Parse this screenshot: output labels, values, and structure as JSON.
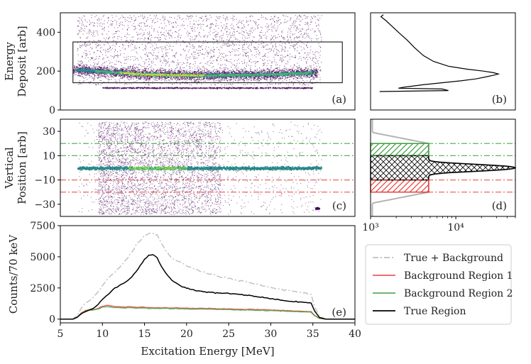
{
  "colors": {
    "true_background": "#b3b3b3",
    "background_region_1": "#e8413c",
    "background_region_2": "#3e9e3e",
    "true_region": "#000000",
    "density_low": "#440154",
    "density_mid": "#21918c",
    "density_high": "#fde725"
  },
  "chart_data": [
    {
      "id": "a",
      "type": "heatmap",
      "panel_label": "(a)",
      "ylabel": [
        "Energy",
        "Deposit [arb]"
      ],
      "xlim": [
        5,
        40
      ],
      "ylim": [
        0,
        500
      ],
      "yticks": [
        "0",
        "200",
        "400"
      ],
      "ytick_values": [
        0,
        200,
        400
      ],
      "band": {
        "x": [
          6.5,
          35.5
        ],
        "center": [
          210,
          185,
          180,
          185,
          195
        ],
        "center_x": [
          6.5,
          15,
          22,
          30,
          35.5
        ]
      },
      "lower_band": {
        "x": [
          10,
          35
        ],
        "y": 115
      },
      "gate_box": {
        "x": [
          6.5,
          38.5
        ],
        "y": [
          140,
          350
        ]
      }
    },
    {
      "id": "b",
      "type": "line",
      "panel_label": "(b)",
      "description_axis": "projection of energy deposit",
      "ylim": [
        0,
        500
      ],
      "points_y": [
        95,
        100,
        108,
        112,
        118,
        122,
        130,
        140,
        150,
        160,
        170,
        180,
        185,
        192,
        200,
        210,
        225,
        250,
        280,
        320,
        360,
        400,
        430,
        460,
        480,
        490
      ],
      "points_x": [
        0.05,
        0.6,
        0.55,
        0.2,
        0.25,
        0.3,
        0.4,
        0.55,
        0.7,
        0.82,
        0.9,
        0.97,
        1.0,
        0.96,
        0.88,
        0.75,
        0.6,
        0.48,
        0.4,
        0.33,
        0.27,
        0.2,
        0.15,
        0.1,
        0.06,
        0.08
      ]
    },
    {
      "id": "c",
      "type": "heatmap",
      "panel_label": "(c)",
      "ylabel": [
        "Vertical",
        "Position [arb]"
      ],
      "xlim": [
        5,
        40
      ],
      "ylim": [
        -40,
        40
      ],
      "yticks": [
        "30",
        "10",
        "−10",
        "−30"
      ],
      "ytick_values": [
        30,
        10,
        -10,
        -30
      ],
      "green_lines": [
        20,
        10
      ],
      "red_lines": [
        -10,
        -20
      ],
      "band": {
        "x": [
          7,
          36
        ],
        "y": 0
      },
      "spot": {
        "x": 35.5,
        "y": -33
      }
    },
    {
      "id": "d",
      "type": "line",
      "panel_label": "(d)",
      "xscale": "log",
      "xlim": [
        1000,
        50000
      ],
      "ylim": [
        -40,
        40
      ],
      "xticks": [
        "10³",
        "10⁴"
      ],
      "xtick_values": [
        1000,
        10000
      ],
      "green_lines": [
        20,
        10
      ],
      "red_lines": [
        -10,
        -20
      ],
      "peak_value": 45000,
      "plateau_value": 4800
    },
    {
      "id": "e",
      "type": "line",
      "panel_label": "(e)",
      "xlabel": "Excitation Energy [MeV]",
      "ylabel": "Counts/70 keV",
      "xlim": [
        5,
        40
      ],
      "ylim": [
        -300,
        7500
      ],
      "xticks": [
        "5",
        "10",
        "15",
        "20",
        "25",
        "30",
        "35",
        "40"
      ],
      "xtick_values": [
        5,
        10,
        15,
        20,
        25,
        30,
        35,
        40
      ],
      "yticks": [
        "0",
        "2500",
        "5000",
        "7500"
      ],
      "ytick_values": [
        0,
        2500,
        5000,
        7500
      ],
      "x": [
        5,
        6.5,
        7,
        7.5,
        8,
        8.5,
        9,
        9.5,
        10,
        10.5,
        11,
        11.5,
        12,
        12.5,
        13,
        13.5,
        14,
        14.5,
        15,
        15.5,
        16,
        16.5,
        17,
        17.5,
        18,
        18.5,
        19,
        19.5,
        20,
        21,
        22,
        23,
        24,
        25,
        26,
        27,
        28,
        29,
        30,
        31,
        32,
        33,
        34,
        34.8,
        35.2,
        35.8,
        36.5,
        40
      ],
      "series": [
        {
          "name": "True + Background",
          "key": "true_background",
          "dash": "8,3,2,3",
          "values": [
            0,
            0,
            300,
            900,
            1300,
            1500,
            1800,
            2200,
            2700,
            3100,
            3500,
            3800,
            4100,
            4500,
            4900,
            5400,
            5900,
            6300,
            6700,
            6900,
            6950,
            6700,
            6100,
            5500,
            5100,
            4800,
            4600,
            4500,
            4300,
            4000,
            3800,
            3600,
            3400,
            3300,
            3100,
            3000,
            2850,
            2700,
            2550,
            2400,
            2300,
            2200,
            2100,
            2000,
            1000,
            200,
            0,
            0
          ]
        },
        {
          "name": "Background Region 1",
          "key": "background_region_1",
          "dash": "",
          "values": [
            0,
            0,
            150,
            500,
            700,
            750,
            780,
            850,
            1050,
            1100,
            1050,
            1000,
            1000,
            980,
            1000,
            970,
            950,
            960,
            950,
            930,
            920,
            910,
            900,
            920,
            900,
            880,
            900,
            880,
            870,
            860,
            870,
            850,
            830,
            820,
            800,
            790,
            780,
            760,
            740,
            700,
            680,
            650,
            620,
            600,
            300,
            60,
            0,
            0
          ]
        },
        {
          "name": "Background Region 2",
          "key": "background_region_2",
          "dash": "",
          "values": [
            0,
            0,
            130,
            450,
            650,
            700,
            740,
            800,
            950,
            1000,
            950,
            920,
            910,
            900,
            920,
            900,
            880,
            890,
            870,
            860,
            870,
            850,
            840,
            860,
            840,
            830,
            840,
            820,
            810,
            800,
            800,
            790,
            770,
            760,
            740,
            730,
            720,
            700,
            680,
            650,
            630,
            600,
            580,
            560,
            280,
            50,
            0,
            0
          ]
        },
        {
          "name": "True Region",
          "key": "true_region",
          "dash": "",
          "values": [
            0,
            0,
            150,
            450,
            600,
            750,
            900,
            1200,
            1600,
            1900,
            2200,
            2500,
            2700,
            2900,
            3100,
            3400,
            3800,
            4300,
            4800,
            5100,
            5200,
            4900,
            4200,
            3700,
            3300,
            3000,
            2800,
            2600,
            2500,
            2300,
            2200,
            2150,
            2100,
            2050,
            2000,
            1950,
            1850,
            1750,
            1650,
            1550,
            1450,
            1400,
            1350,
            1300,
            650,
            120,
            0,
            0
          ]
        }
      ],
      "legend_position": "right"
    }
  ],
  "legend": {
    "items": [
      {
        "label": "True + Background",
        "key": "true_background",
        "dash": "8,3,2,3"
      },
      {
        "label": "Background Region 1",
        "key": "background_region_1",
        "dash": ""
      },
      {
        "label": "Background Region 2",
        "key": "background_region_2",
        "dash": ""
      },
      {
        "label": "True Region",
        "key": "true_region",
        "dash": ""
      }
    ]
  }
}
